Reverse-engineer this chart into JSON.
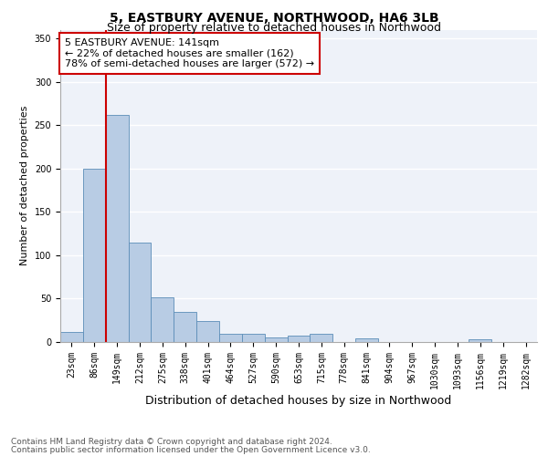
{
  "title": "5, EASTBURY AVENUE, NORTHWOOD, HA6 3LB",
  "subtitle": "Size of property relative to detached houses in Northwood",
  "xlabel": "Distribution of detached houses by size in Northwood",
  "ylabel": "Number of detached properties",
  "categories": [
    "23sqm",
    "86sqm",
    "149sqm",
    "212sqm",
    "275sqm",
    "338sqm",
    "401sqm",
    "464sqm",
    "527sqm",
    "590sqm",
    "653sqm",
    "715sqm",
    "778sqm",
    "841sqm",
    "904sqm",
    "967sqm",
    "1030sqm",
    "1093sqm",
    "1156sqm",
    "1219sqm",
    "1282sqm"
  ],
  "values": [
    12,
    200,
    262,
    115,
    52,
    35,
    24,
    9,
    9,
    5,
    7,
    9,
    0,
    4,
    0,
    0,
    0,
    0,
    3,
    0,
    0
  ],
  "bar_color": "#b8cce4",
  "bar_edge_color": "#5b8db8",
  "ylim": [
    0,
    360
  ],
  "yticks": [
    0,
    50,
    100,
    150,
    200,
    250,
    300,
    350
  ],
  "property_label": "5 EASTBURY AVENUE: 141sqm",
  "pct_smaller": 22,
  "n_smaller": 162,
  "pct_larger_semi": 78,
  "n_larger_semi": 572,
  "vline_bar_index": 2,
  "annotation_box_color": "#cc0000",
  "vline_color": "#cc0000",
  "bg_color": "#eef2f9",
  "footer1": "Contains HM Land Registry data © Crown copyright and database right 2024.",
  "footer2": "Contains public sector information licensed under the Open Government Licence v3.0.",
  "title_fontsize": 10,
  "subtitle_fontsize": 9,
  "xlabel_fontsize": 9,
  "ylabel_fontsize": 8,
  "tick_fontsize": 7,
  "footer_fontsize": 6.5,
  "ann_fontsize": 8
}
